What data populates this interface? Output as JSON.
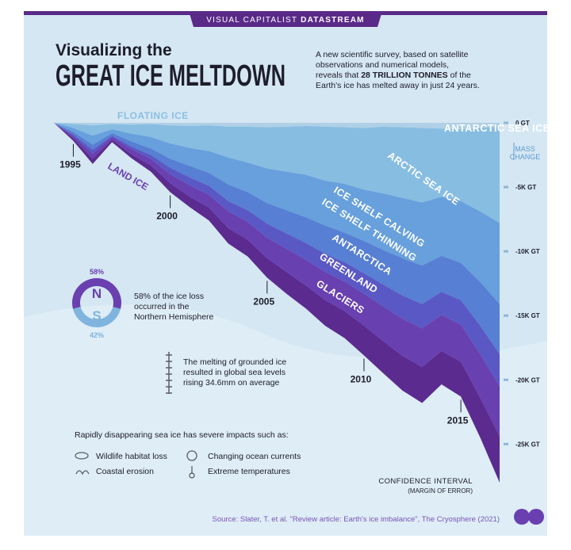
{
  "header": {
    "brand": "VISUAL CAPITALIST",
    "brand_bold": "DATASTREAM",
    "title_line1": "Visualizing the",
    "title_line2": "GREAT ICE MELTDOWN",
    "intro_1": "A new scientific survey, based on satellite",
    "intro_2": "observations and numerical models,",
    "intro_3a": "reveals that ",
    "intro_3b": "28 TRILLION TONNES",
    "intro_3c": " of the",
    "intro_4": "Earth's ice has melted away in just 24 years."
  },
  "chart_data": {
    "type": "area",
    "stacked": true,
    "x": [
      1994,
      1995,
      1996,
      1997,
      1998,
      1999,
      2000,
      2001,
      2002,
      2003,
      2004,
      2005,
      2006,
      2007,
      2008,
      2009,
      2010,
      2011,
      2012,
      2013,
      2014,
      2015,
      2016,
      2017
    ],
    "xlim": [
      1994,
      2017
    ],
    "xticks": [
      1995,
      2000,
      2005,
      2010,
      2015
    ],
    "ylim": [
      -28000,
      0
    ],
    "yticks": [
      {
        "value": 0,
        "label": "0 GT"
      },
      {
        "value": -5000,
        "label": "-5K GT"
      },
      {
        "value": -10000,
        "label": "-10K GT"
      },
      {
        "value": -15000,
        "label": "-15K GT"
      },
      {
        "value": -20000,
        "label": "-20K GT"
      },
      {
        "value": -25000,
        "label": "-25K GT"
      }
    ],
    "y_axis_label": [
      "MASS",
      "CHANGE"
    ],
    "groups": {
      "floating": "FLOATING ICE",
      "land": "LAND ICE"
    },
    "confidence_label": "CONFIDENCE INTERVAL",
    "confidence_sub": "(MARGIN OF ERROR)",
    "series": [
      {
        "name": "ANTARCTIC SEA ICE",
        "color": "#afd0e6",
        "values": [
          0,
          -100,
          -200,
          -100,
          -150,
          -100,
          -200,
          -250,
          -200,
          -300,
          -300,
          -350,
          -300,
          -250,
          -300,
          -350,
          -400,
          -300,
          -350,
          -400,
          -450,
          -500,
          -400,
          -300
        ]
      },
      {
        "name": "ARCTIC SEA ICE",
        "color": "#88bde2",
        "values": [
          0,
          -300,
          -800,
          -400,
          -700,
          -1000,
          -1400,
          -1700,
          -2000,
          -2400,
          -2800,
          -3200,
          -3500,
          -3800,
          -4200,
          -4400,
          -4800,
          -5200,
          -5500,
          -5800,
          -5300,
          -5600,
          -6500,
          -7500
        ]
      },
      {
        "name": "ICE SHELF CALVING",
        "color": "#67a0dc",
        "values": [
          0,
          -300,
          -700,
          -300,
          -600,
          -900,
          -1200,
          -1400,
          -1700,
          -2100,
          -2300,
          -2700,
          -3000,
          -3300,
          -3500,
          -3800,
          -4000,
          -4400,
          -4700,
          -4900,
          -4600,
          -4800,
          -5500,
          -6300
        ]
      },
      {
        "name": "ICE SHELF THINNING",
        "color": "#577fd3",
        "values": [
          0,
          -200,
          -400,
          -200,
          -400,
          -500,
          -700,
          -900,
          -1000,
          -1300,
          -1400,
          -1600,
          -1800,
          -2000,
          -2200,
          -2300,
          -2500,
          -2700,
          -2900,
          -3000,
          -2800,
          -2900,
          -3400,
          -3900
        ]
      },
      {
        "name": "ANTARCTICA",
        "color": "#5a58c4",
        "values": [
          0,
          -100,
          -300,
          -100,
          -200,
          -300,
          -500,
          -600,
          -700,
          -800,
          -900,
          -1100,
          -1200,
          -1300,
          -1400,
          -1500,
          -1600,
          -1700,
          -1800,
          -1900,
          -1800,
          -1900,
          -2200,
          -2500
        ]
      },
      {
        "name": "GREENLAND",
        "color": "#6840b0",
        "values": [
          0,
          -200,
          -400,
          -200,
          -400,
          -500,
          -700,
          -900,
          -1000,
          -1300,
          -1400,
          -1600,
          -1800,
          -2000,
          -2200,
          -2300,
          -2500,
          -2700,
          -2900,
          -3000,
          -2800,
          -2900,
          -3400,
          -3900
        ]
      },
      {
        "name": "GLACIERS",
        "color": "#5b2b90",
        "values": [
          0,
          -200,
          -400,
          -200,
          -300,
          -500,
          -700,
          -800,
          -1000,
          -1200,
          -1300,
          -1500,
          -1700,
          -1800,
          -2000,
          -2100,
          -2300,
          -2500,
          -2700,
          -2800,
          -2600,
          -2700,
          -3100,
          -3600
        ]
      }
    ]
  },
  "hemisphere": {
    "values": [
      58,
      42
    ],
    "value_labels": [
      "58%",
      "42%"
    ],
    "labels": [
      "N",
      "S"
    ],
    "colors": [
      "#6a3fb0",
      "#7fb4de"
    ],
    "note": [
      "58% of the ice loss",
      "occurred in the",
      "Northern Hemisphere"
    ]
  },
  "sea_level": {
    "note": [
      "The melting of grounded ice",
      "resulted in global sea levels",
      "rising 34.6mm on average"
    ]
  },
  "impacts": {
    "title": "Rapidly disappearing sea ice has severe impacts such as:",
    "items": [
      "Wildlife habitat loss",
      "Changing ocean currents",
      "Coastal erosion",
      "Extreme temperatures"
    ]
  },
  "source": "Source: Slater, T. et al. \"Review article: Earth's ice imbalance\", The Cryosphere (2021)"
}
